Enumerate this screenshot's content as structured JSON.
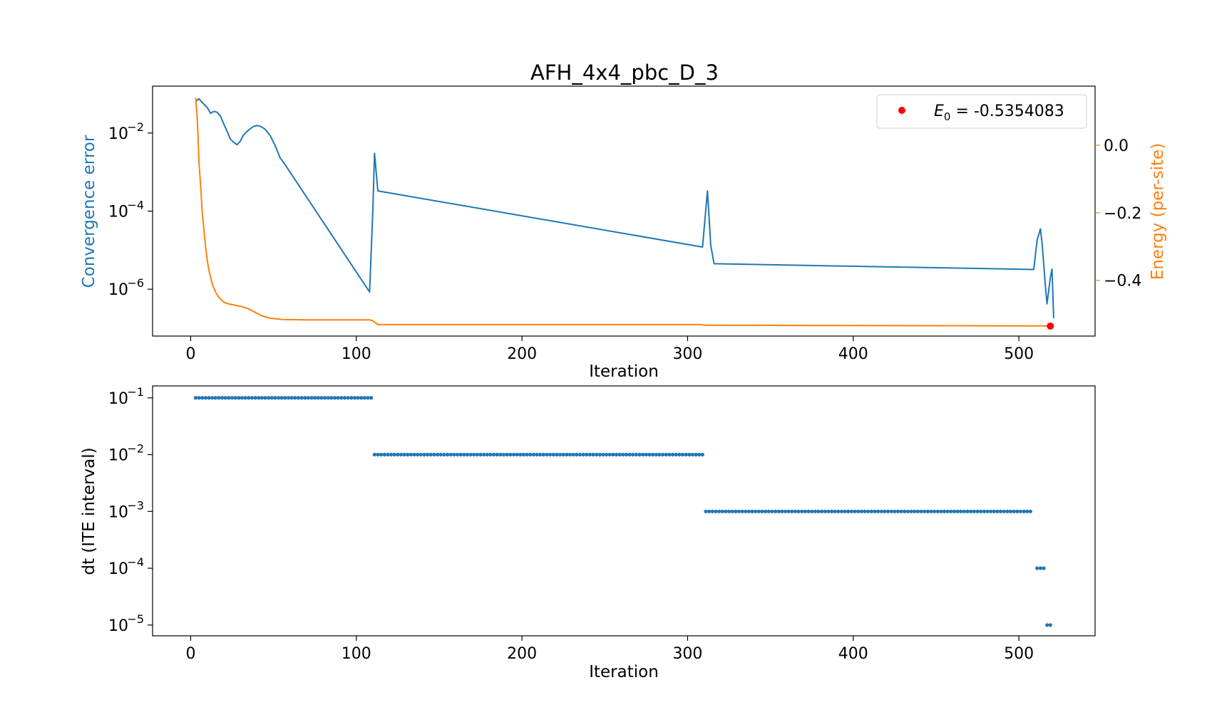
{
  "figure": {
    "title": "AFH_4x4_pbc_D_3"
  },
  "colors": {
    "blue": "#1f77b4",
    "orange": "#ff7f0e",
    "red": "#ff0000"
  },
  "chart_data": [
    {
      "type": "line",
      "xlabel": "Iteration",
      "ylabel": "Convergence error",
      "ylabel_right": "Energy (per-site)",
      "xlim": [
        -23,
        546
      ],
      "xticks": [
        0,
        100,
        200,
        300,
        400,
        500
      ],
      "ylim_log": [
        -7.2,
        -0.8
      ],
      "yscale": "log",
      "yticks_exp": [
        -2,
        -4,
        -6
      ],
      "ylim_right": [
        -0.565,
        0.175
      ],
      "yticks_right": [
        0.0,
        -0.2,
        -0.4
      ],
      "yticks_right_labels": [
        "0.0",
        "−0.2",
        "−0.4"
      ],
      "grid": false,
      "legend": {
        "position": "top-right",
        "label_prefix": "E",
        "label_sub": "0",
        "label_value": " = -0.5354083"
      },
      "series": [
        {
          "axis": "left",
          "color": "blue",
          "points": [
            [
              3,
              0.065
            ],
            [
              5,
              0.075
            ],
            [
              7,
              0.06
            ],
            [
              10,
              0.045
            ],
            [
              12,
              0.032
            ],
            [
              14,
              0.036
            ],
            [
              16,
              0.034
            ],
            [
              18,
              0.027
            ],
            [
              20,
              0.017
            ],
            [
              22,
              0.011
            ],
            [
              24,
              0.007
            ],
            [
              26,
              0.0058
            ],
            [
              28,
              0.005
            ],
            [
              30,
              0.0062
            ],
            [
              32,
              0.009
            ],
            [
              35,
              0.012
            ],
            [
              38,
              0.0148
            ],
            [
              40,
              0.0155
            ],
            [
              42,
              0.015
            ],
            [
              45,
              0.0125
            ],
            [
              48,
              0.0085
            ],
            [
              51,
              0.0048
            ],
            [
              54,
              0.0023
            ],
            [
              56,
              0.0018
            ],
            [
              108,
              8.5e-07
            ],
            [
              110,
              0.00011
            ],
            [
              111,
              0.003
            ],
            [
              113,
              0.00033
            ],
            [
              309,
              1.2e-05
            ],
            [
              312,
              0.00033
            ],
            [
              314,
              1.3e-05
            ],
            [
              316,
              4.5e-06
            ],
            [
              509,
              3.2e-06
            ],
            [
              511,
              1.8e-05
            ],
            [
              513,
              3.5e-05
            ],
            [
              514,
              1.5e-05
            ],
            [
              516,
              1.2e-06
            ],
            [
              517,
              4.2e-07
            ],
            [
              519,
              2e-06
            ],
            [
              520,
              3.3e-06
            ],
            [
              521,
              1.8e-07
            ]
          ]
        },
        {
          "axis": "right",
          "color": "orange",
          "points": [
            [
              3,
              0.14
            ],
            [
              4,
              0.08
            ],
            [
              5,
              -0.05
            ],
            [
              6,
              -0.12
            ],
            [
              7,
              -0.2
            ],
            [
              8,
              -0.25
            ],
            [
              9,
              -0.3
            ],
            [
              10,
              -0.34
            ],
            [
              11,
              -0.37
            ],
            [
              12,
              -0.39
            ],
            [
              13,
              -0.41
            ],
            [
              15,
              -0.435
            ],
            [
              17,
              -0.45
            ],
            [
              20,
              -0.465
            ],
            [
              23,
              -0.47
            ],
            [
              27,
              -0.474
            ],
            [
              31,
              -0.478
            ],
            [
              35,
              -0.484
            ],
            [
              39,
              -0.495
            ],
            [
              43,
              -0.505
            ],
            [
              47,
              -0.511
            ],
            [
              51,
              -0.514
            ],
            [
              56,
              -0.516
            ],
            [
              70,
              -0.517
            ],
            [
              108,
              -0.517
            ],
            [
              110,
              -0.52
            ],
            [
              113,
              -0.531
            ],
            [
              308,
              -0.531
            ],
            [
              310,
              -0.533
            ],
            [
              520,
              -0.535
            ]
          ]
        },
        {
          "axis": "right",
          "type": "scatter",
          "color": "red",
          "points": [
            [
              519,
              -0.5354083
            ]
          ]
        }
      ]
    },
    {
      "type": "scatter",
      "xlabel": "Iteration",
      "ylabel": "dt (ITE interval)",
      "xlim": [
        -23,
        546
      ],
      "xticks": [
        0,
        100,
        200,
        300,
        400,
        500
      ],
      "yscale": "log",
      "ylim_log": [
        -5.19,
        -0.79
      ],
      "yticks_exp": [
        -1,
        -2,
        -3,
        -4,
        -5
      ],
      "grid": false,
      "series": [
        {
          "color": "blue",
          "segments": [
            {
              "x_start": 3,
              "x_end": 109,
              "step": 2,
              "value": 0.1
            },
            {
              "x_start": 111,
              "x_end": 309,
              "step": 2,
              "value": 0.01
            },
            {
              "x_start": 311,
              "x_end": 507,
              "step": 2,
              "value": 0.001
            },
            {
              "x_start": 511,
              "x_end": 515,
              "step": 2,
              "value": 0.0001
            },
            {
              "x_start": 517,
              "x_end": 519,
              "step": 2,
              "value": 1e-05
            }
          ]
        }
      ]
    }
  ]
}
